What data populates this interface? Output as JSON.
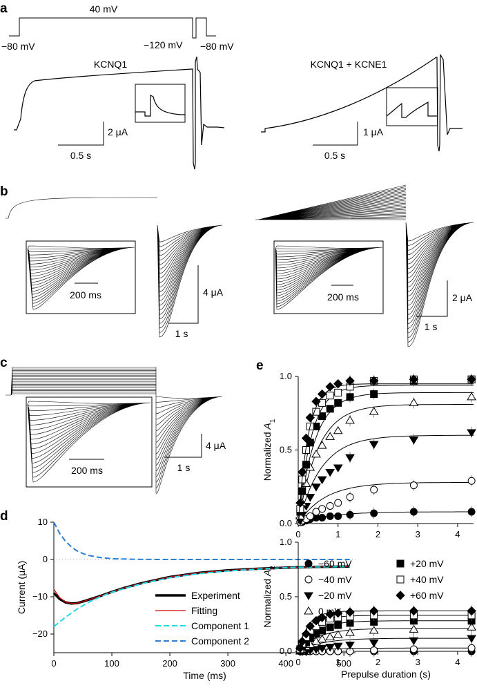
{
  "panels": {
    "a": "a",
    "b": "b",
    "c": "c",
    "d": "d",
    "e": "e"
  },
  "panel_a": {
    "protocol": {
      "hold1": "−80 mV",
      "step": "40 mV",
      "tail": "−120 mV",
      "hold2": "−80 mV"
    },
    "title_left": "KCNQ1",
    "title_right": "KCNQ1 + KCNE1",
    "scale_left": {
      "y": "2 μA",
      "x": "0.5 s"
    },
    "scale_right": {
      "y": "1 μA",
      "x": "0.5 s"
    }
  },
  "panel_b": {
    "inset_left_time": "200 ms",
    "inset_right_time": "200 ms",
    "scale_left": {
      "y": "4 μA",
      "x": "1 s"
    },
    "scale_right": {
      "y": "2 μA",
      "x": "1 s"
    }
  },
  "panel_c": {
    "inset_time": "200 ms",
    "scale": {
      "y": "4 μA",
      "x": "1 s"
    }
  },
  "chart_data": [
    {
      "id": "d",
      "type": "line",
      "xlabel": "Time (ms)",
      "ylabel": "Current (μA)",
      "xlim": [
        0,
        520
      ],
      "ylim": [
        -25,
        10
      ],
      "xticks": [
        0,
        100,
        200,
        300,
        400,
        500
      ],
      "yticks": [
        10,
        0,
        -10,
        -20
      ],
      "legend_position": "inside-bottom-right",
      "series": [
        {
          "name": "Experiment",
          "color": "#000000",
          "style": "thick-solid",
          "x": [
            0,
            10,
            20,
            30,
            40,
            50,
            60,
            80,
            100,
            120,
            150,
            200,
            250,
            300,
            350,
            400,
            450,
            510
          ],
          "y": [
            -9.0,
            -10.6,
            -11.5,
            -11.8,
            -11.7,
            -11.3,
            -10.8,
            -9.8,
            -8.7,
            -7.7,
            -6.4,
            -4.7,
            -3.6,
            -2.9,
            -2.5,
            -2.2,
            -2.0,
            -1.9
          ]
        },
        {
          "name": "Fitting",
          "color": "#d10000",
          "style": "solid",
          "x": [
            0,
            10,
            20,
            30,
            40,
            50,
            60,
            80,
            100,
            120,
            150,
            200,
            250,
            300,
            350,
            400,
            450,
            510
          ],
          "y": [
            -8.0,
            -10.2,
            -11.4,
            -11.8,
            -11.7,
            -11.3,
            -10.8,
            -9.8,
            -8.7,
            -7.7,
            -6.4,
            -4.7,
            -3.6,
            -2.9,
            -2.5,
            -2.2,
            -2.0,
            -1.9
          ]
        },
        {
          "name": "Component 1",
          "color": "#22d8e8",
          "style": "dashed",
          "x": [
            0,
            20,
            40,
            60,
            80,
            100,
            130,
            160,
            200,
            250,
            300,
            350,
            400,
            450,
            510
          ],
          "y": [
            -18.0,
            -15.5,
            -13.3,
            -11.5,
            -10.0,
            -8.8,
            -7.4,
            -6.2,
            -4.9,
            -3.8,
            -3.1,
            -2.6,
            -2.2,
            -2.0,
            -1.9
          ]
        },
        {
          "name": "Component 2",
          "color": "#2a7fd4",
          "style": "dashed",
          "x": [
            0,
            10,
            20,
            30,
            40,
            50,
            60,
            80,
            100,
            150,
            200,
            300,
            400,
            510
          ],
          "y": [
            10.0,
            7.0,
            4.9,
            3.4,
            2.3,
            1.6,
            1.1,
            0.5,
            0.2,
            0.02,
            0,
            0,
            0,
            0
          ]
        }
      ]
    },
    {
      "id": "e-top",
      "type": "scatter",
      "xlabel": "",
      "ylabel": "Normalized A1",
      "xlim": [
        0,
        4.4
      ],
      "ylim": [
        0,
        1.0
      ],
      "xticks": [
        0,
        1,
        2,
        3,
        4
      ],
      "yticks": [
        0.0,
        0.5,
        1.0
      ],
      "x": [
        0.05,
        0.1,
        0.2,
        0.3,
        0.45,
        0.6,
        0.8,
        1.0,
        1.3,
        1.9,
        2.9,
        4.35
      ],
      "series": [
        {
          "name": "−60 mV",
          "marker": "filled-circle",
          "y": [
            0.01,
            0.01,
            0.02,
            0.03,
            0.04,
            0.04,
            0.05,
            0.05,
            0.06,
            0.07,
            0.08,
            0.08
          ]
        },
        {
          "name": "−40 mV",
          "marker": "open-circle",
          "y": [
            0.01,
            0.02,
            0.03,
            0.05,
            0.08,
            0.1,
            0.12,
            0.14,
            0.18,
            0.23,
            0.26,
            0.29
          ]
        },
        {
          "name": "−20 mV",
          "marker": "filled-triangle-down",
          "y": [
            0.02,
            0.06,
            0.12,
            0.18,
            0.25,
            0.3,
            0.35,
            0.38,
            0.45,
            0.54,
            0.57,
            0.62
          ]
        },
        {
          "name": "0 mV",
          "marker": "open-triangle-up",
          "y": [
            0.05,
            0.14,
            0.27,
            0.38,
            0.47,
            0.53,
            0.59,
            0.63,
            0.7,
            0.76,
            0.82,
            0.86
          ]
        },
        {
          "name": "+20 mV",
          "marker": "filled-square",
          "y": [
            0.08,
            0.22,
            0.4,
            0.55,
            0.66,
            0.73,
            0.78,
            0.82,
            0.86,
            0.88,
            0.97,
            0.98
          ]
        },
        {
          "name": "+40 mV",
          "marker": "open-square",
          "y": [
            0.1,
            0.3,
            0.5,
            0.66,
            0.76,
            0.82,
            0.87,
            0.89,
            0.93,
            0.97,
            0.98,
            0.98
          ]
        },
        {
          "name": "+60 mV",
          "marker": "filled-diamond",
          "y": [
            0.14,
            0.35,
            0.58,
            0.72,
            0.83,
            0.88,
            0.93,
            0.95,
            0.97,
            0.97,
            0.98,
            0.98
          ]
        }
      ],
      "fits_plateau": [
        0.08,
        0.28,
        0.6,
        0.81,
        0.89,
        0.94,
        0.95
      ]
    },
    {
      "id": "e-bottom",
      "type": "scatter",
      "xlabel": "Prepulse duration (s)",
      "ylabel": "Normalized A2",
      "xlim": [
        0,
        4.4
      ],
      "ylim": [
        0,
        1.0
      ],
      "xticks": [
        0,
        1,
        2,
        3,
        4
      ],
      "yticks": [
        0.0,
        0.5,
        1.0
      ],
      "legend_position": "top",
      "x": [
        0.05,
        0.1,
        0.2,
        0.3,
        0.45,
        0.6,
        0.8,
        1.0,
        1.3,
        1.9,
        2.9,
        4.35
      ],
      "series": [
        {
          "name": "−60 mV",
          "marker": "filled-circle",
          "y": [
            0.0,
            0.0,
            0.0,
            0.0,
            0.0,
            0.0,
            0.0,
            0.0,
            0.0,
            0.0,
            0.0,
            0.0
          ]
        },
        {
          "name": "−40 mV",
          "marker": "open-circle",
          "y": [
            0.0,
            0.0,
            0.0,
            0.0,
            0.0,
            0.0,
            0.0,
            0.0,
            0.0,
            0.01,
            0.02,
            0.03
          ]
        },
        {
          "name": "−20 mV",
          "marker": "filled-triangle-down",
          "y": [
            0.0,
            0.0,
            0.0,
            0.01,
            0.02,
            0.03,
            0.04,
            0.05,
            0.06,
            0.08,
            0.1,
            0.12
          ]
        },
        {
          "name": "0 mV",
          "marker": "open-triangle-up",
          "y": [
            0.0,
            0.02,
            0.04,
            0.06,
            0.09,
            0.11,
            0.13,
            0.15,
            0.17,
            0.19,
            0.2,
            0.22
          ]
        },
        {
          "name": "+20 mV",
          "marker": "filled-square",
          "y": [
            0.01,
            0.04,
            0.08,
            0.12,
            0.16,
            0.19,
            0.22,
            0.24,
            0.26,
            0.27,
            0.28,
            0.28
          ]
        },
        {
          "name": "+40 mV",
          "marker": "open-square",
          "y": [
            0.02,
            0.07,
            0.13,
            0.19,
            0.23,
            0.27,
            0.3,
            0.31,
            0.32,
            0.33,
            0.33,
            0.33
          ]
        },
        {
          "name": "+60 mV",
          "marker": "filled-diamond",
          "y": [
            0.03,
            0.09,
            0.16,
            0.23,
            0.28,
            0.31,
            0.34,
            0.35,
            0.36,
            0.37,
            0.37,
            0.37
          ]
        }
      ],
      "fits_plateau": [
        0.0,
        0.03,
        0.12,
        0.21,
        0.28,
        0.33,
        0.37
      ]
    }
  ]
}
